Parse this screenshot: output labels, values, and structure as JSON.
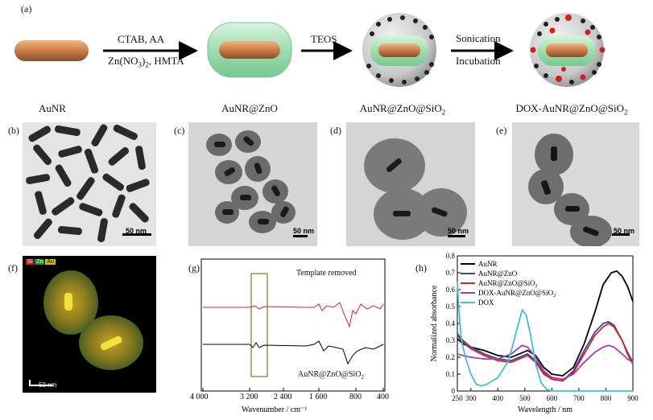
{
  "schematic": {
    "panel_label": "(a)",
    "step1_top": "CTAB, AA",
    "step1_bottom_pre": "Zn(NO",
    "step1_bottom_sub": "3",
    "step1_bottom_post": ")",
    "step1_bottom_sub2": "2",
    "step1_bottom_tail": ", HMTA",
    "step2_top": "TEOS",
    "step3_top": "Sonication",
    "step3_bottom": "Incubation",
    "captions": {
      "c1": "AuNR",
      "c2": "AuNR@ZnO",
      "c3_pre": "AuNR@ZnO@SiO",
      "c3_sub": "2",
      "c4_pre": "DOX-AuNR@ZnO@SiO",
      "c4_sub": "2"
    }
  },
  "tem": {
    "b": {
      "label": "(b)",
      "scale": "50 nm"
    },
    "c": {
      "label": "(c)",
      "scale": "50 nm"
    },
    "d": {
      "label": "(d)",
      "scale": "50 nm"
    },
    "e": {
      "label": "(e)",
      "scale": "50 nm"
    }
  },
  "edx": {
    "label": "(f)",
    "legend": [
      "Si",
      "Zn",
      "Au"
    ],
    "legend_colors": [
      "#e83030",
      "#30c030",
      "#e8e030"
    ],
    "scale": "50 nm"
  },
  "ftir": {
    "label": "(g)",
    "xlabel": "Wavenumber / cm⁻¹",
    "xticks": [
      "4 000",
      "3 200",
      "2 400",
      "1 600",
      "800",
      "400"
    ],
    "top_label": "Template removed",
    "bottom_label_pre": "AuNR@ZnO@SiO",
    "bottom_label_sub": "2"
  },
  "chart_data": {
    "type": "line",
    "label": "(h)",
    "xlabel": "Wavelength / nm",
    "ylabel": "Normalized absorbance",
    "xlim": [
      250,
      900
    ],
    "ylim": [
      0,
      0.8
    ],
    "xticks": [
      250,
      300,
      400,
      500,
      600,
      700,
      800,
      900
    ],
    "yticks": [
      0,
      0.1,
      0.2,
      0.3,
      0.4,
      0.5,
      0.6,
      0.7,
      0.8
    ],
    "legend_placement": "top-left",
    "series": [
      {
        "name": "AuNR",
        "color": "#000000",
        "x": [
          250,
          270,
          300,
          350,
          400,
          450,
          480,
          510,
          540,
          570,
          600,
          640,
          680,
          720,
          760,
          790,
          820,
          840,
          860,
          880,
          900
        ],
        "y": [
          0.31,
          0.28,
          0.26,
          0.24,
          0.21,
          0.2,
          0.22,
          0.24,
          0.21,
          0.14,
          0.1,
          0.09,
          0.14,
          0.28,
          0.47,
          0.63,
          0.7,
          0.71,
          0.68,
          0.62,
          0.53
        ]
      },
      {
        "name": "AuNR@ZnO",
        "color": "#2a4fa8",
        "x": [
          250,
          270,
          300,
          350,
          400,
          450,
          480,
          510,
          540,
          570,
          600,
          640,
          680,
          720,
          760,
          790,
          810,
          830,
          860,
          880,
          900
        ],
        "y": [
          0.34,
          0.3,
          0.26,
          0.22,
          0.19,
          0.18,
          0.2,
          0.22,
          0.18,
          0.11,
          0.07,
          0.06,
          0.12,
          0.24,
          0.35,
          0.4,
          0.41,
          0.39,
          0.3,
          0.23,
          0.17
        ]
      },
      {
        "name": "AuNR@ZnO@SiO",
        "sub": "2",
        "color": "#e02020",
        "x": [
          250,
          270,
          300,
          350,
          400,
          450,
          480,
          510,
          540,
          570,
          600,
          640,
          680,
          720,
          760,
          790,
          810,
          830,
          860,
          880,
          900
        ],
        "y": [
          0.33,
          0.29,
          0.25,
          0.21,
          0.18,
          0.17,
          0.19,
          0.21,
          0.17,
          0.1,
          0.07,
          0.06,
          0.11,
          0.22,
          0.33,
          0.38,
          0.4,
          0.38,
          0.3,
          0.22,
          0.16
        ]
      },
      {
        "name": "DOX-AuNR@ZnO@SiO",
        "sub": "2",
        "color": "#a040b0",
        "x": [
          250,
          270,
          300,
          350,
          400,
          450,
          490,
          510,
          540,
          570,
          600,
          640,
          680,
          720,
          760,
          790,
          810,
          830,
          860,
          880,
          900
        ],
        "y": [
          0.22,
          0.21,
          0.2,
          0.19,
          0.19,
          0.22,
          0.27,
          0.26,
          0.2,
          0.12,
          0.08,
          0.07,
          0.1,
          0.17,
          0.23,
          0.26,
          0.27,
          0.26,
          0.22,
          0.19,
          0.17
        ]
      },
      {
        "name": "DOX",
        "color": "#40c0d8",
        "x": [
          250,
          255,
          265,
          280,
          300,
          320,
          340,
          360,
          400,
          440,
          470,
          490,
          505,
          520,
          540,
          560,
          580,
          600,
          640,
          700,
          800,
          900
        ],
        "y": [
          0.65,
          0.5,
          0.3,
          0.2,
          0.1,
          0.04,
          0.03,
          0.04,
          0.08,
          0.18,
          0.36,
          0.48,
          0.45,
          0.34,
          0.16,
          0.05,
          0.01,
          0.0,
          0.0,
          0.0,
          0.0,
          0.0
        ]
      }
    ]
  }
}
